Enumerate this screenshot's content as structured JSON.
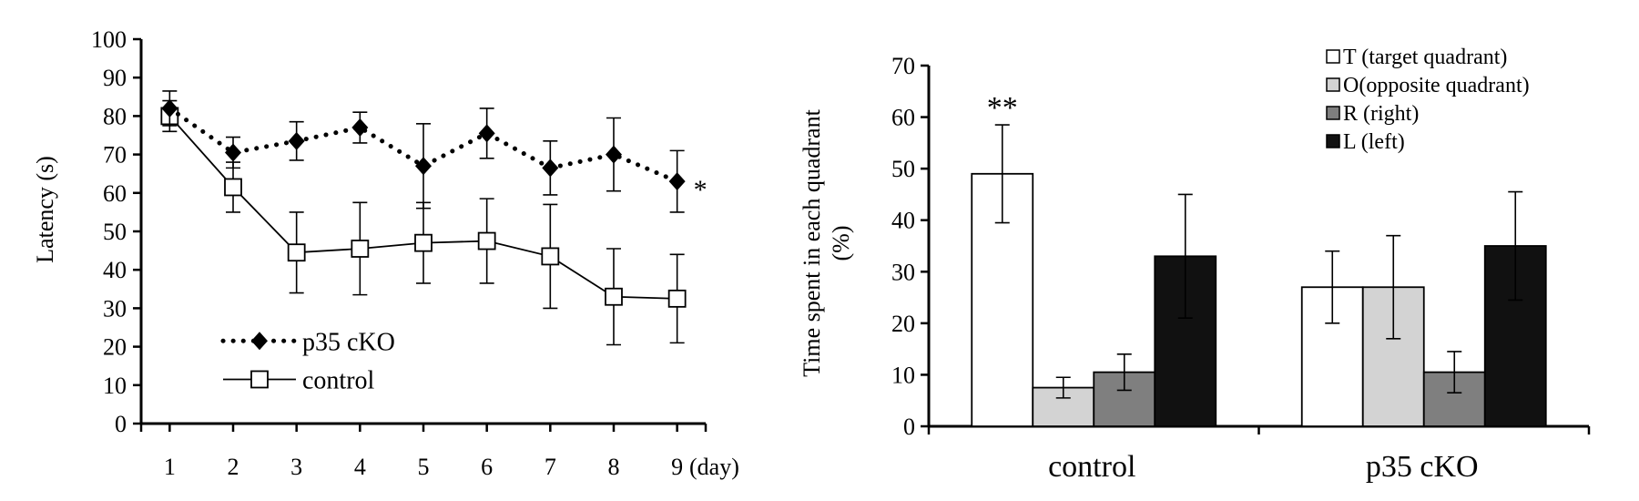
{
  "chart_data": [
    {
      "type": "line",
      "xlabel": "",
      "x_unit_label": "(day)",
      "ylabel": "Latency (s)",
      "x": [
        1,
        2,
        3,
        4,
        5,
        6,
        7,
        8,
        9
      ],
      "ylim": [
        0,
        100
      ],
      "yticks": [
        0,
        10,
        20,
        30,
        40,
        50,
        60,
        70,
        80,
        90,
        100
      ],
      "legend_position": "bottom-left",
      "series": [
        {
          "name": "p35 cKO",
          "values": [
            82,
            70.5,
            73.5,
            77,
            67,
            75.5,
            66.5,
            70,
            63
          ],
          "error": [
            4.5,
            4,
            5,
            4,
            11,
            6.5,
            7,
            9.5,
            8
          ],
          "line_style": "dotted",
          "marker": "diamond-filled"
        },
        {
          "name": "control",
          "values": [
            80,
            61.5,
            44.5,
            45.5,
            47,
            47.5,
            43.5,
            33,
            32.5
          ],
          "error": [
            4,
            6.5,
            10.5,
            12,
            10.5,
            11,
            13.5,
            12.5,
            11.5
          ],
          "line_style": "solid",
          "marker": "square-open"
        }
      ],
      "annotations": [
        {
          "text": "*",
          "anchor_series": "p35 cKO",
          "anchor_x": 9
        }
      ]
    },
    {
      "type": "bar",
      "ylabel_line1": "Time spent in each quadrant",
      "ylabel_line2": "(%)",
      "xlabel": "",
      "ylim": [
        0,
        70
      ],
      "yticks": [
        0,
        10,
        20,
        30,
        40,
        50,
        60,
        70
      ],
      "categories": [
        "control",
        "p35 cKO"
      ],
      "legend_position": "top-right",
      "series": [
        {
          "name": "T (target quadrant)",
          "values": [
            49,
            27
          ],
          "error": [
            9.5,
            7
          ],
          "color": "#ffffff"
        },
        {
          "name": "O(opposite quadrant)",
          "values": [
            7.5,
            27
          ],
          "error": [
            2,
            10
          ],
          "color": "#d3d3d3"
        },
        {
          "name": "R (right)",
          "values": [
            10.5,
            10.5
          ],
          "error": [
            3.5,
            4
          ],
          "color": "#7f7f7f"
        },
        {
          "name": "L (left)",
          "values": [
            33,
            35
          ],
          "error": [
            12,
            10.5
          ],
          "color": "#111111"
        }
      ],
      "annotations": [
        {
          "text": "**",
          "category": "control",
          "series": "T (target quadrant)"
        }
      ]
    }
  ]
}
